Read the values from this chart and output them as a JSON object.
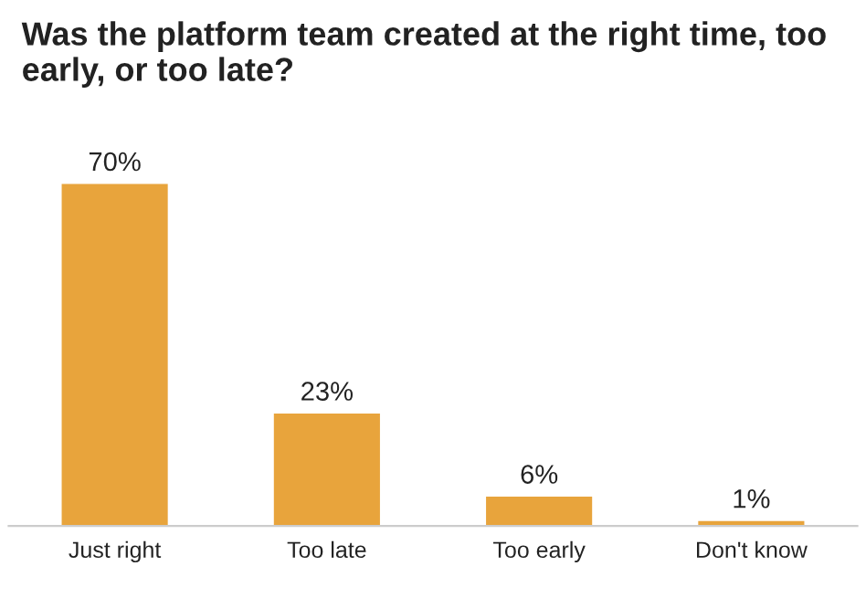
{
  "chart_data": {
    "type": "bar",
    "title": "Was the platform team created at the right time, too early, or too late?",
    "categories": [
      "Just right",
      "Too late",
      "Too early",
      "Don't know"
    ],
    "values": [
      70,
      23,
      6,
      1
    ],
    "value_labels": [
      "70%",
      "23%",
      "6%",
      "1%"
    ],
    "color": "#e8a43c"
  }
}
